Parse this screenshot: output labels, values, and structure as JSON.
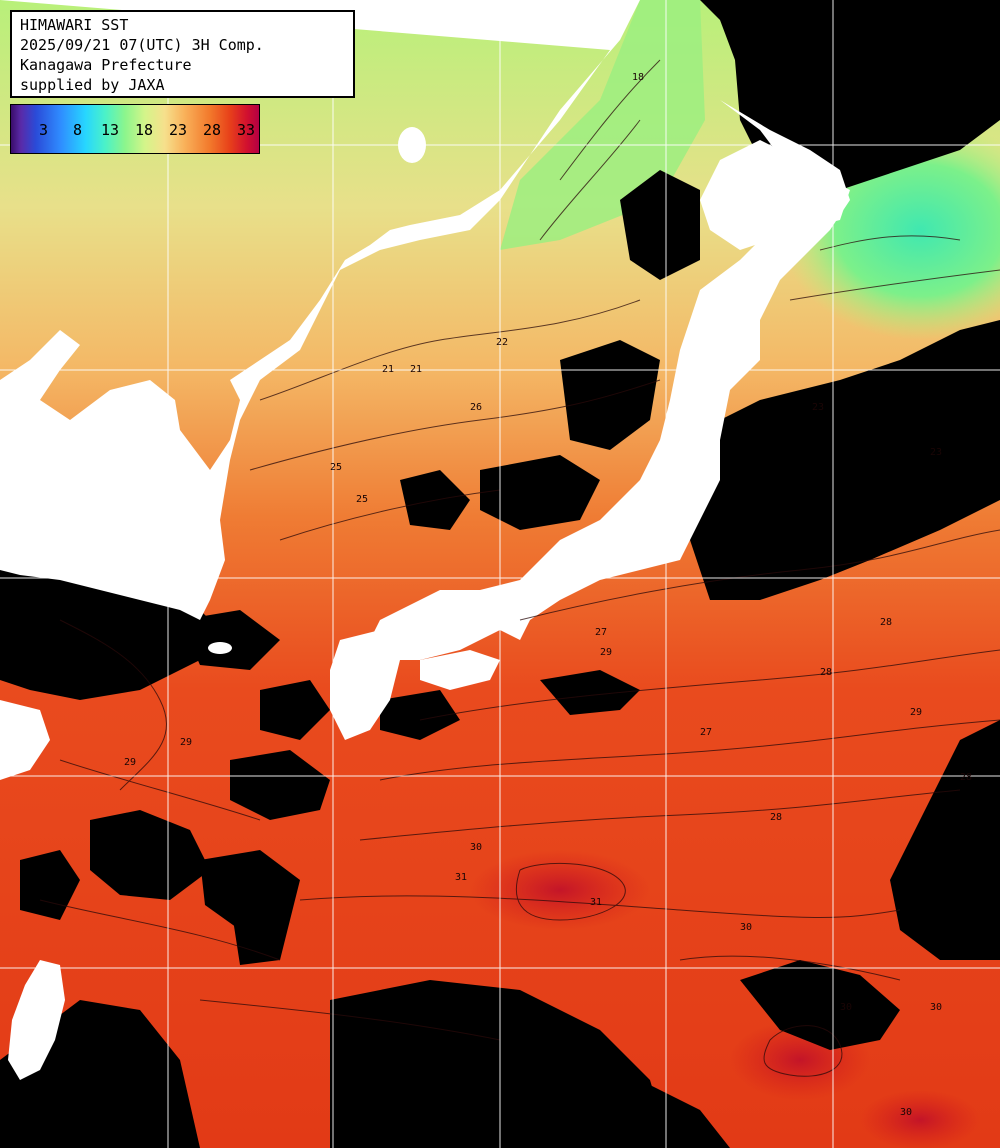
{
  "header": {
    "line1": "HIMAWARI SST",
    "line2": "2025/09/21 07(UTC) 3H Comp.",
    "line3": "Kanagawa Prefecture",
    "line4": "supplied by JAXA"
  },
  "legend": {
    "ticks": [
      "3",
      "8",
      "13",
      "18",
      "23",
      "28",
      "33"
    ]
  },
  "contour_labels": [
    "18",
    "21",
    "21",
    "22",
    "23",
    "23",
    "25",
    "25",
    "26",
    "27",
    "27",
    "28",
    "28",
    "28",
    "28",
    "29",
    "29",
    "29",
    "29",
    "30",
    "30",
    "30",
    "30",
    "30",
    "31",
    "31"
  ],
  "colors": {
    "land": "#ffffff",
    "cloud": "#000000",
    "grid": "#ffffff",
    "sst_cool": "#8ff08a",
    "sst_mid": "#f2c070",
    "sst_warm": "#e84a1c",
    "sst_hot": "#d41a1a"
  }
}
